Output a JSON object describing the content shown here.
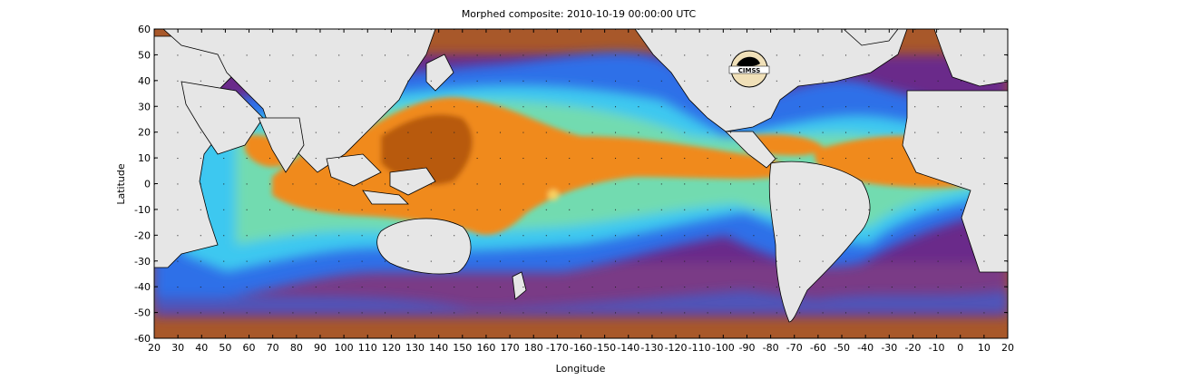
{
  "title": "Morphed composite: 2010-10-19 00:00:00 UTC",
  "x_axis": {
    "label": "Longitude",
    "tick_labels": [
      "20",
      "30",
      "40",
      "50",
      "60",
      "70",
      "80",
      "90",
      "100",
      "110",
      "120",
      "130",
      "140",
      "150",
      "160",
      "170",
      "180",
      "-170",
      "-160",
      "-150",
      "-140",
      "-130",
      "-120",
      "-110",
      "-100",
      "-90",
      "-80",
      "-70",
      "-60",
      "-50",
      "-40",
      "-30",
      "-20",
      "-10",
      "0",
      "10",
      "20"
    ]
  },
  "y_axis": {
    "label": "Latitude",
    "tick_labels": [
      "60",
      "50",
      "40",
      "30",
      "20",
      "10",
      "0",
      "-10",
      "-20",
      "-30",
      "-40",
      "-50",
      "-60"
    ]
  },
  "logo_text": "CIMSS",
  "colors": {
    "land": "#e6e6e6",
    "low": "#a8582a",
    "purple": "#6b2a8a",
    "blue": "#2f6fe8",
    "cyan": "#3ec8f0",
    "green": "#7fe0a0",
    "orange": "#f08a1a",
    "dark_orange": "#b85a10"
  }
}
